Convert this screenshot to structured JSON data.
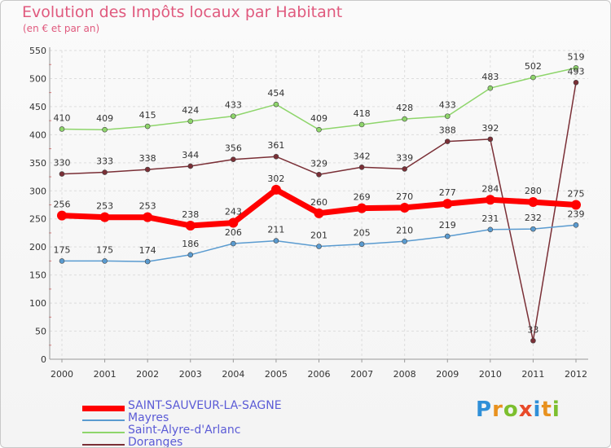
{
  "chart_data": {
    "type": "line",
    "title": "Evolution des Impôts locaux par Habitant",
    "subtitle": "(en € et par an)",
    "xlabel": "",
    "ylabel": "",
    "ylim": [
      0,
      550
    ],
    "yticks": [
      0,
      50,
      100,
      150,
      200,
      250,
      300,
      350,
      400,
      450,
      500,
      550
    ],
    "grid": true,
    "legend_position": "bottom-left",
    "categories": [
      "2000",
      "2001",
      "2002",
      "2003",
      "2004",
      "2005",
      "2006",
      "2007",
      "2008",
      "2009",
      "2010",
      "2011",
      "2012"
    ],
    "series": [
      {
        "name": "Saint-Alyre-d'Arlanc",
        "color": "#8ed56b",
        "values": [
          410,
          409,
          415,
          424,
          433,
          454,
          409,
          418,
          428,
          433,
          483,
          502,
          519
        ]
      },
      {
        "name": "Doranges",
        "color": "#7a2f36",
        "values": [
          330,
          333,
          338,
          344,
          356,
          361,
          329,
          342,
          339,
          388,
          392,
          33,
          493
        ]
      },
      {
        "name": "Mayres",
        "color": "#5a9bd0",
        "values": [
          175,
          175,
          174,
          186,
          206,
          211,
          201,
          205,
          210,
          219,
          231,
          232,
          239
        ]
      },
      {
        "name": "SAINT-SAUVEUR-LA-SAGNE",
        "color": "#ff0000",
        "values": [
          256,
          253,
          253,
          238,
          243,
          302,
          260,
          269,
          270,
          277,
          284,
          280,
          275
        ]
      }
    ],
    "legend_order": [
      "SAINT-SAUVEUR-LA-SAGNE",
      "Mayres",
      "Saint-Alyre-d'Arlanc",
      "Doranges"
    ]
  },
  "logo": {
    "text": "Proxiti"
  }
}
